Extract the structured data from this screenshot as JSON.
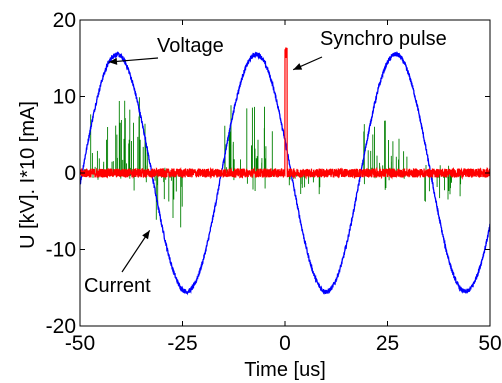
{
  "chart_data": {
    "type": "line",
    "title": "",
    "xlabel": "Time [us]",
    "ylabel": "U [kV]. I*10 [mA]",
    "xlim": [
      -50,
      50
    ],
    "ylim": [
      -20,
      20
    ],
    "xticks": [
      -50,
      -25,
      0,
      25,
      50
    ],
    "yticks": [
      -20,
      -10,
      0,
      10,
      20
    ],
    "xtick_labels": [
      "-50",
      "-25",
      "0",
      "25",
      "50"
    ],
    "ytick_labels": [
      "-20",
      "-10",
      "0",
      "10",
      "20"
    ],
    "grid": false,
    "legend": "none",
    "series": [
      {
        "label": "Voltage",
        "color": "#0000ff",
        "shape": "sinusoid",
        "amplitude": 15.5,
        "period_us": 34,
        "first_peak_us": -41,
        "noise_kv": 0.3
      },
      {
        "label": "Current",
        "color": "#008000",
        "shape": "discharge bursts",
        "bursts": [
          {
            "x_from": -49,
            "x_to": -32,
            "peak": 10
          },
          {
            "x_from": -32,
            "x_to": -25,
            "peak": -7.5
          },
          {
            "x_from": -15,
            "x_to": -3,
            "peak": 9
          },
          {
            "x_from": 1,
            "x_to": 9,
            "peak": -3
          },
          {
            "x_from": 19,
            "x_to": 30,
            "peak": 7
          },
          {
            "x_from": 34,
            "x_to": 43,
            "peak": -4
          }
        ]
      },
      {
        "label": "Synchro pulse",
        "color": "#ff0000",
        "shape": "baseline with pulse",
        "baseline_noise": 0.6,
        "pulse_x_from": 0,
        "pulse_x_to": 0.5,
        "pulse_height": 16.5
      }
    ],
    "annotations": [
      {
        "text": "Voltage",
        "points_to": [
          -43,
          14.5
        ]
      },
      {
        "text": "Synchro pulse",
        "points_to": [
          2,
          13.5
        ]
      },
      {
        "text": "Current",
        "points_to": [
          -33,
          -7.5
        ]
      }
    ]
  }
}
